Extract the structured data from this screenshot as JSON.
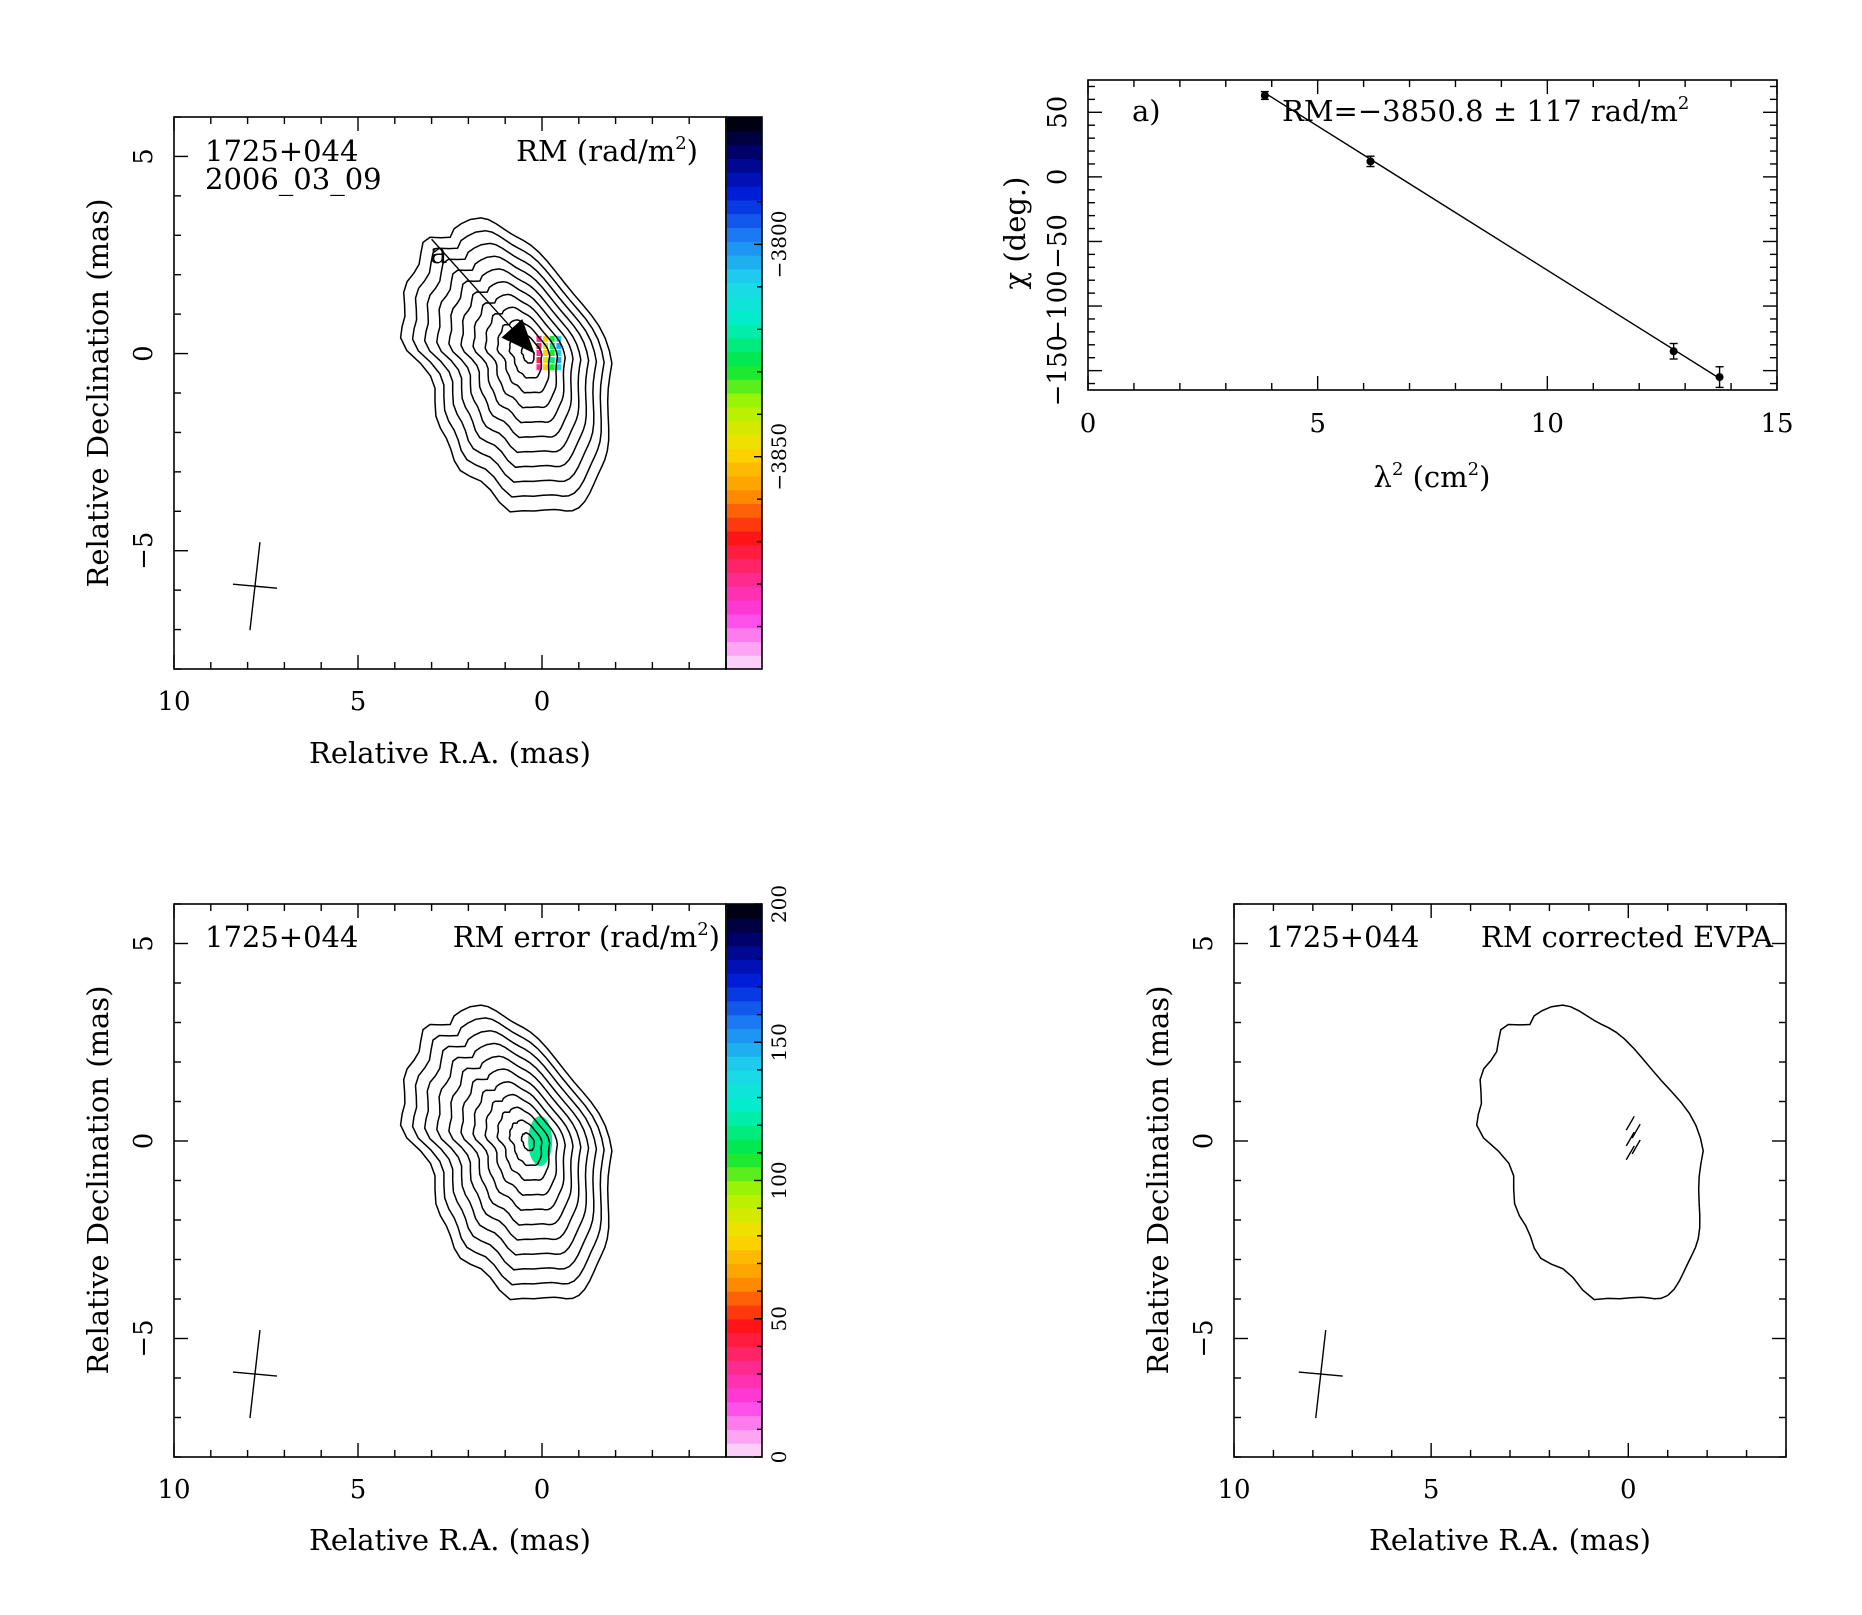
{
  "chart_data": [
    {
      "type": "heatmap",
      "panel": "rm-map",
      "source_label": "1725+044",
      "epoch_label": "2006_03_09",
      "map_title": "RM (rad/m",
      "map_title_sup": "2",
      "map_title_close": ")",
      "xlabel": "Relative R.A. (mas)",
      "ylabel": "Relative Declination (mas)",
      "xlim": [
        10,
        -5
      ],
      "ylim": [
        -8,
        6
      ],
      "xticks": [
        10,
        5,
        0
      ],
      "yticks": [
        5,
        0,
        -5
      ],
      "colorbar": {
        "range": [
          -3900,
          -3770
        ],
        "ticks": [
          -3800,
          -3850
        ]
      },
      "annotation": {
        "text": "a",
        "from": [
          3.0,
          2.9
        ],
        "to": [
          0.2,
          0.0
        ]
      },
      "contour_levels": 11,
      "rm_values": [
        -3880,
        -3850,
        -3830,
        -3810
      ],
      "beam": {
        "x": 7.8,
        "y": -5.9
      }
    },
    {
      "type": "scatter",
      "panel": "rm-fit",
      "panel_label": "a)",
      "fit_text": "RM=−3850.8 ± 117 rad/m",
      "fit_text_sup": "2",
      "xlabel": "λ",
      "xlabel_sup": "2",
      "xlabel_unit": " (cm",
      "xlabel_unit_sup": "2",
      "xlabel_close": ")",
      "ylabel": "χ (deg.)",
      "xlim": [
        0,
        15
      ],
      "ylim": [
        -165,
        75
      ],
      "xticks": [
        0,
        5,
        10,
        15
      ],
      "yticks": [
        50,
        0,
        -50,
        -100,
        -150
      ],
      "ytick_labels": [
        "50",
        "0",
        "−50",
        "−100",
        "−150"
      ],
      "series": [
        {
          "x": [
            3.85,
            6.15,
            12.75,
            13.75
          ],
          "y": [
            63,
            12,
            -135,
            -155
          ],
          "err": [
            3,
            4,
            6,
            8
          ]
        }
      ],
      "fit_line": {
        "x": [
          3.85,
          13.75
        ],
        "y": [
          65,
          -156
        ]
      }
    },
    {
      "type": "heatmap",
      "panel": "rm-error",
      "source_label": "1725+044",
      "map_title": "RM error (rad/m",
      "map_title_sup": "2",
      "map_title_close": ")",
      "xlabel": "Relative R.A. (mas)",
      "ylabel": "Relative Declination (mas)",
      "xlim": [
        10,
        -5
      ],
      "ylim": [
        -8,
        6
      ],
      "xticks": [
        10,
        5,
        0
      ],
      "yticks": [
        5,
        0,
        -5
      ],
      "colorbar": {
        "range": [
          0,
          200
        ],
        "ticks": [
          0,
          50,
          100,
          150,
          200
        ]
      },
      "contour_levels": 11,
      "error_value": 120,
      "beam": {
        "x": 7.8,
        "y": -5.9
      }
    },
    {
      "type": "scatter",
      "panel": "evpa",
      "source_label": "1725+044",
      "map_title": "RM corrected EVPA",
      "xlabel": "Relative R.A. (mas)",
      "ylabel": "Relative Declination (mas)",
      "xlim": [
        10,
        -4
      ],
      "ylim": [
        -8,
        6
      ],
      "xticks": [
        10,
        5,
        0
      ],
      "yticks": [
        5,
        0,
        -5
      ],
      "contour_levels": 1,
      "evpa_angle_deg": 30,
      "beam": {
        "x": 7.8,
        "y": -5.9
      }
    }
  ],
  "colors": {
    "axis": "#000000",
    "contour": "#000000",
    "background": "#ffffff",
    "error_patch": "#2ad8e4"
  }
}
